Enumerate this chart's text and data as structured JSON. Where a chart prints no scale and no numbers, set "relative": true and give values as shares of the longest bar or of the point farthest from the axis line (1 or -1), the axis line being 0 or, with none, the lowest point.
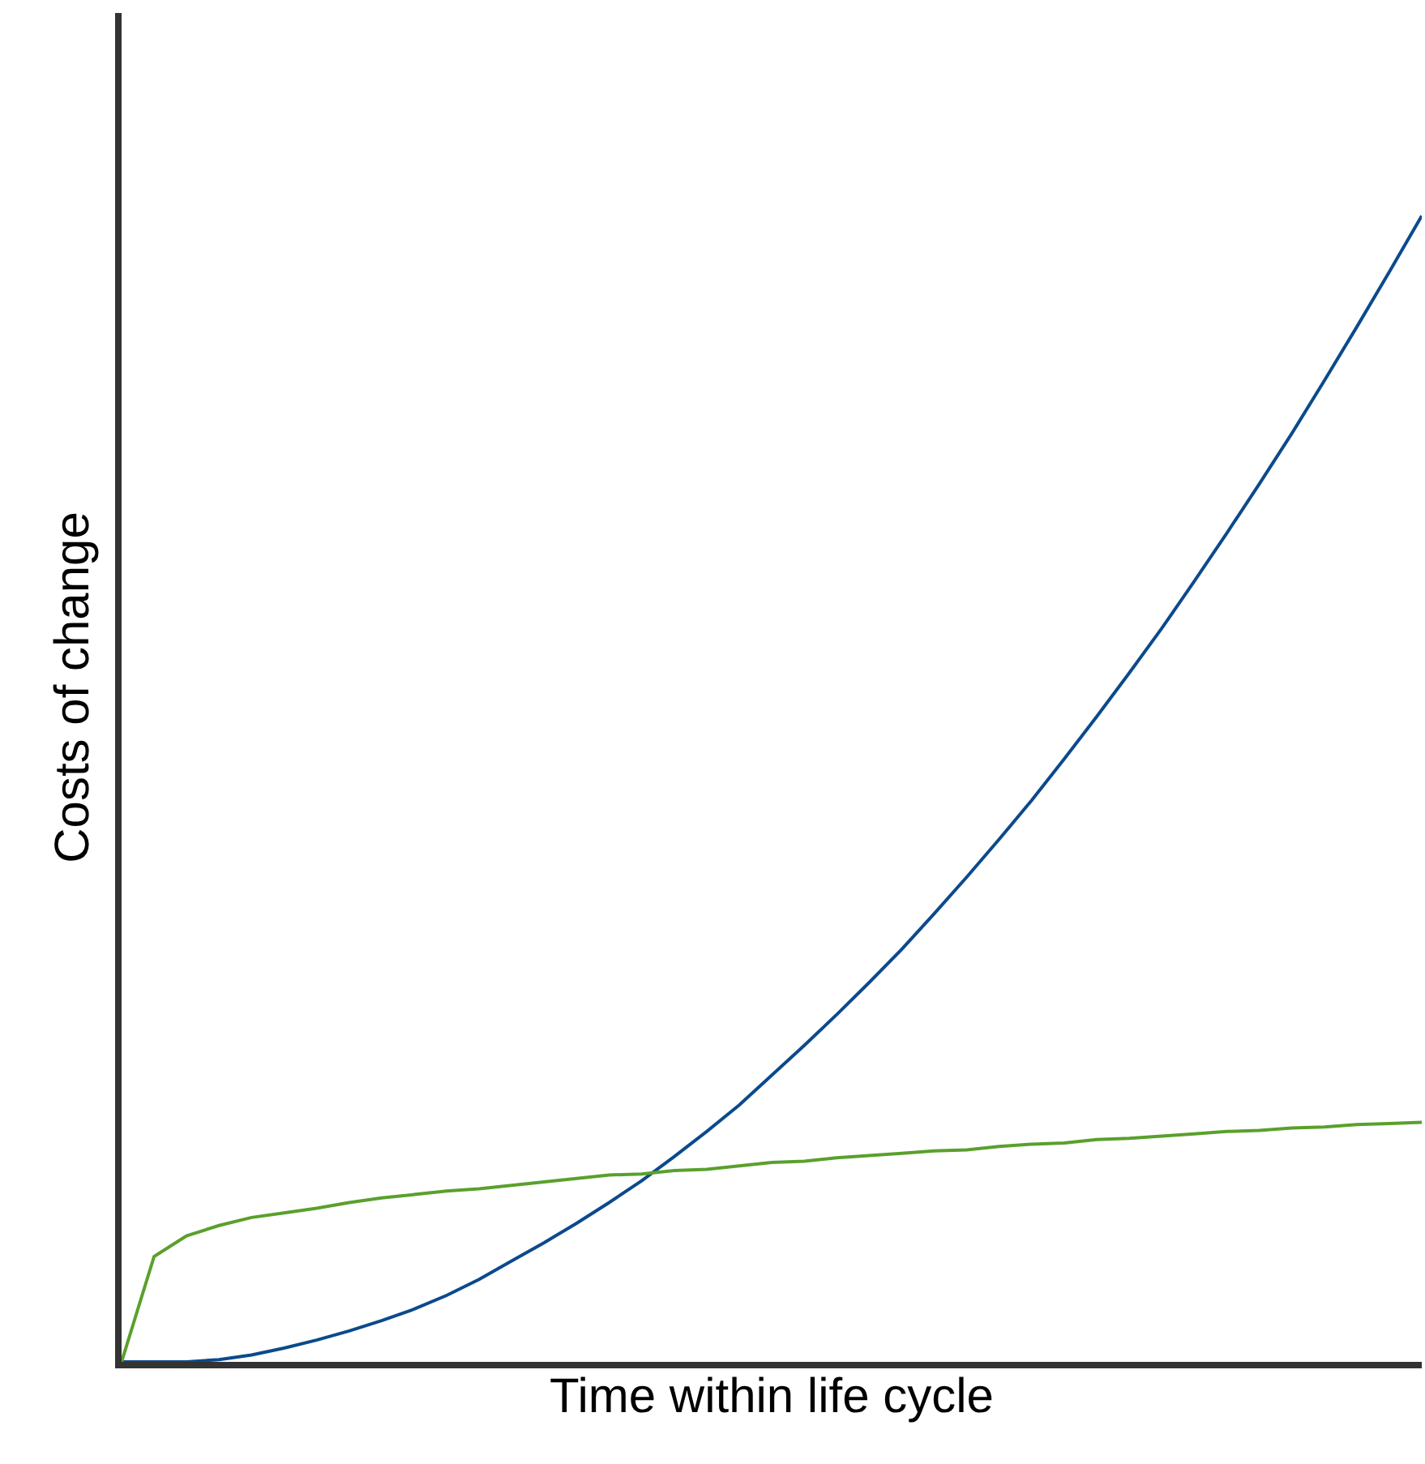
{
  "chart_data": {
    "type": "line",
    "relative": true,
    "xlabel": "Time within life cycle",
    "ylabel": "Costs of change",
    "categories": [
      null,
      null,
      null,
      null,
      null,
      null,
      null,
      null,
      null,
      null,
      null,
      null,
      null,
      null,
      null,
      null,
      null,
      null,
      null,
      null,
      null,
      null,
      null,
      null,
      null,
      null,
      null,
      null,
      null,
      null,
      null,
      null,
      null,
      null,
      null,
      null,
      null,
      null,
      null,
      null,
      null
    ],
    "series": [
      {
        "color": "#0b4a8c",
        "values": [
          0,
          0,
          0,
          0.002,
          0.006,
          0.012,
          0.019,
          0.027,
          0.036,
          0.046,
          0.058,
          0.072,
          0.088,
          0.104,
          0.121,
          0.139,
          0.158,
          0.179,
          0.201,
          0.224,
          0.25,
          0.276,
          0.303,
          0.331,
          0.36,
          0.391,
          0.423,
          0.456,
          0.49,
          0.526,
          0.563,
          0.601,
          0.64,
          0.681,
          0.723,
          0.766,
          0.81,
          0.856,
          0.903,
          0.951,
          1
        ]
      },
      {
        "color": "#5aa02c",
        "values": [
          0,
          0.092,
          0.11,
          0.119,
          0.126,
          0.13,
          0.134,
          0.139,
          0.143,
          0.146,
          0.149,
          0.151,
          0.154,
          0.157,
          0.16,
          0.163,
          0.164,
          0.167,
          0.168,
          0.171,
          0.174,
          0.175,
          0.178,
          0.18,
          0.182,
          0.184,
          0.185,
          0.188,
          0.19,
          0.191,
          0.194,
          0.195,
          0.197,
          0.199,
          0.201,
          0.202,
          0.204,
          0.205,
          0.207,
          0.208,
          0.209
        ]
      }
    ],
    "marker": "none",
    "line_style": "solid",
    "tick_labels": false
  }
}
